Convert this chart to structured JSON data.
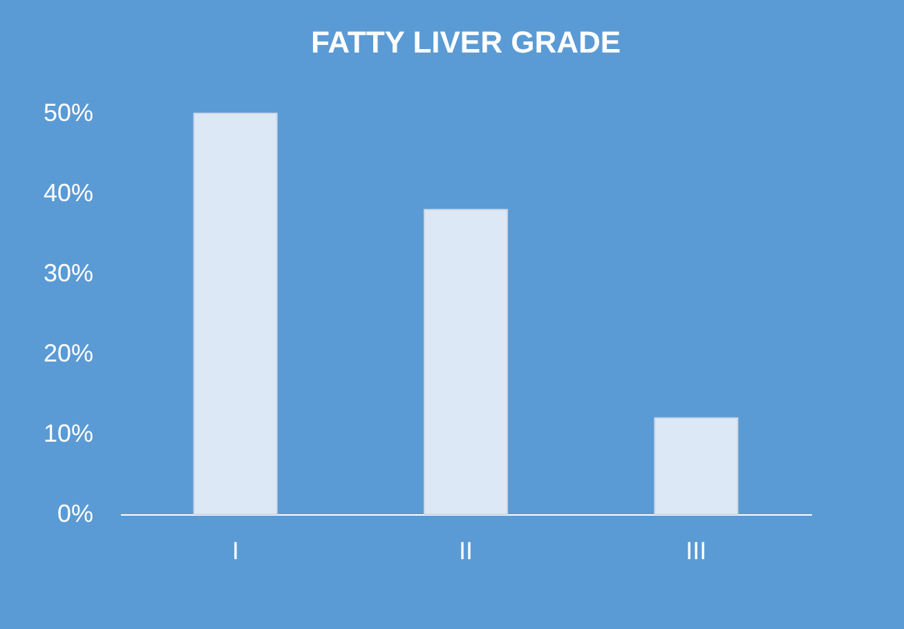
{
  "chart_data": {
    "type": "bar",
    "title": "FATTY LIVER GRADE",
    "categories": [
      "I",
      "II",
      "III"
    ],
    "values": [
      50,
      38,
      12
    ],
    "color": "#dde8f6",
    "ylim": [
      0,
      50
    ],
    "yticks": [
      {
        "value": 0,
        "label": "0%"
      },
      {
        "value": 10,
        "label": "10%"
      },
      {
        "value": 20,
        "label": "20%"
      },
      {
        "value": 30,
        "label": "30%"
      },
      {
        "value": 40,
        "label": "40%"
      },
      {
        "value": 50,
        "label": "50%"
      }
    ],
    "grid": false
  }
}
